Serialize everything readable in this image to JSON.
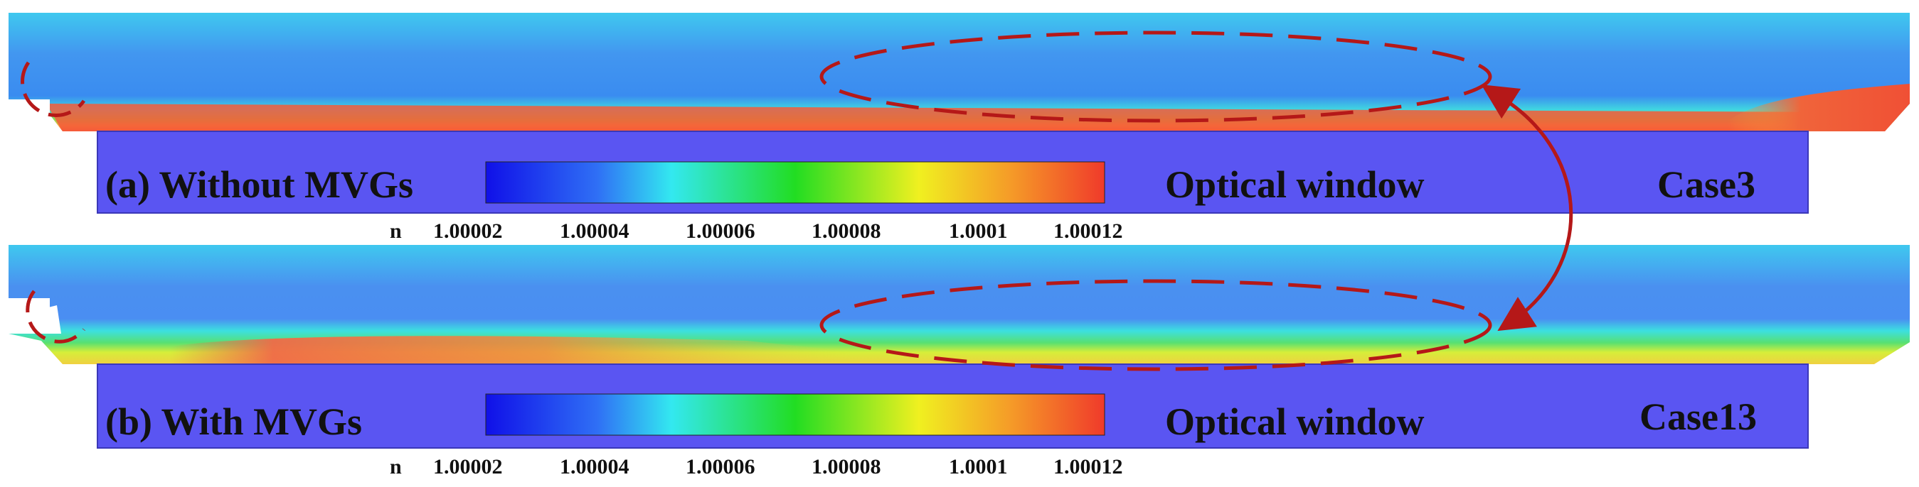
{
  "panels": [
    {
      "label": "(a) Without  MVGs",
      "window_label": "Optical window",
      "case_label": "Case3"
    },
    {
      "label": "(b) With  MVGs",
      "window_label": "Optical window",
      "case_label": "Case13"
    }
  ],
  "colorbar": {
    "variable": "n",
    "ticks": [
      "1.00002",
      "1.00004",
      "1.00006",
      "1.00008",
      "1.0001",
      "1.00012"
    ],
    "colors": [
      "#1010e8",
      "#2f6ff5",
      "#33e8f0",
      "#22dd22",
      "#f0f020",
      "#f59a28",
      "#f03a2a"
    ]
  },
  "colors": {
    "optical_window": "#5a55f2",
    "annotation": "#b51818"
  }
}
